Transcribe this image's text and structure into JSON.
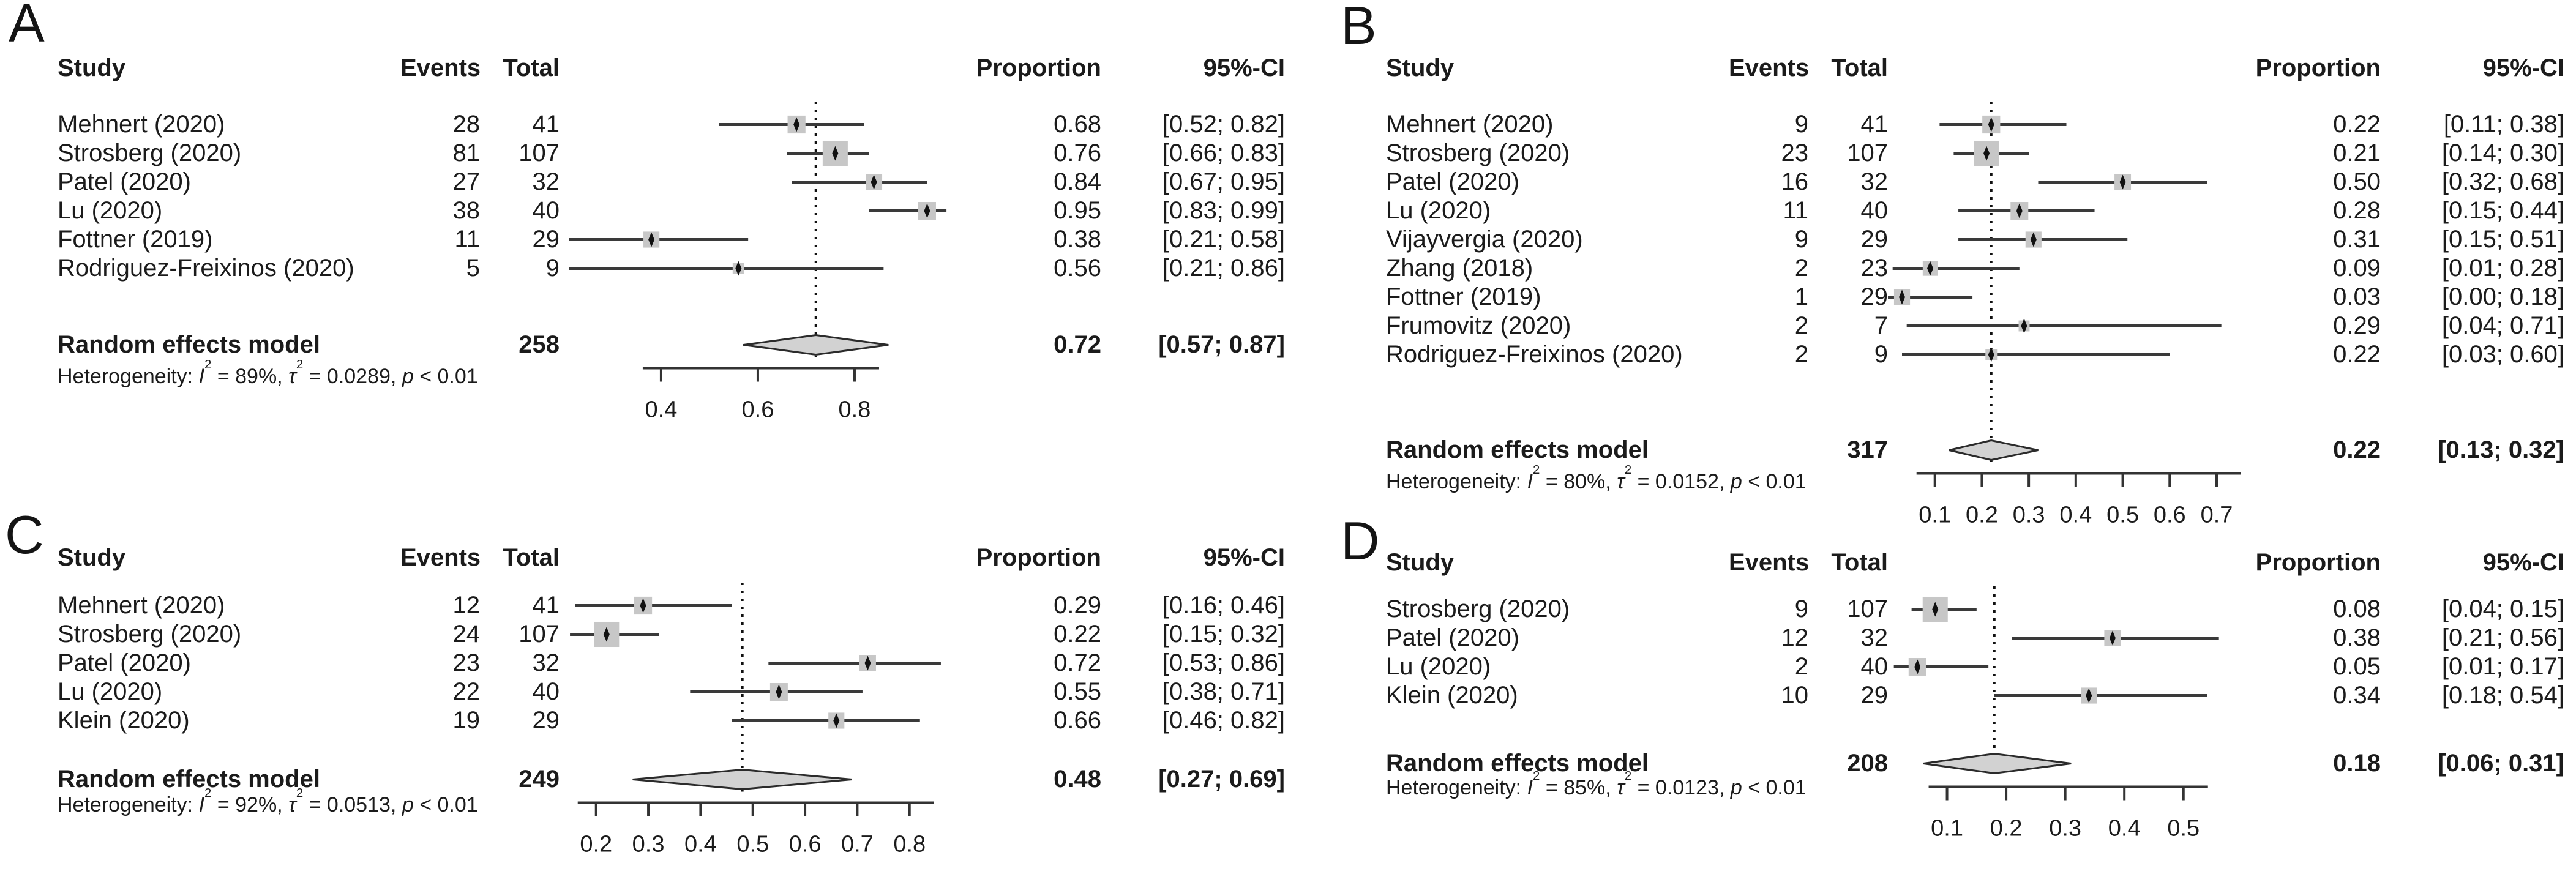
{
  "labels": {
    "study": "Study",
    "events": "Events",
    "total": "Total",
    "proportion": "Proportion",
    "ci": "95%-CI",
    "random_effects": "Random effects model",
    "heterogeneity": "Heterogeneity: ",
    "i": "I",
    "tau": "τ",
    "p": "p",
    "sup2": "2",
    "eq": " = ",
    "sep": ", "
  },
  "chart_data": [
    {
      "type": "forest",
      "panel": "A",
      "studies": [
        {
          "study": "Mehnert (2020)",
          "events": 28,
          "total": 41,
          "proportion": "0.68",
          "ci": "[0.52; 0.82]",
          "prop": 0.68,
          "lo": 0.52,
          "hi": 0.82
        },
        {
          "study": "Strosberg (2020)",
          "events": 81,
          "total": 107,
          "proportion": "0.76",
          "ci": "[0.66; 0.83]",
          "prop": 0.76,
          "lo": 0.66,
          "hi": 0.83
        },
        {
          "study": "Patel (2020)",
          "events": 27,
          "total": 32,
          "proportion": "0.84",
          "ci": "[0.67; 0.95]",
          "prop": 0.84,
          "lo": 0.67,
          "hi": 0.95
        },
        {
          "study": "Lu (2020)",
          "events": 38,
          "total": 40,
          "proportion": "0.95",
          "ci": "[0.83; 0.99]",
          "prop": 0.95,
          "lo": 0.83,
          "hi": 0.99
        },
        {
          "study": "Fottner (2019)",
          "events": 11,
          "total": 29,
          "proportion": "0.38",
          "ci": "[0.21; 0.58]",
          "prop": 0.38,
          "lo": 0.21,
          "hi": 0.58
        },
        {
          "study": "Rodriguez-Freixinos (2020)",
          "events": 5,
          "total": 9,
          "proportion": "0.56",
          "ci": "[0.21; 0.86]",
          "prop": 0.56,
          "lo": 0.21,
          "hi": 0.86
        }
      ],
      "summary": {
        "total": 258,
        "proportion": "0.72",
        "ci": "[0.57; 0.87]",
        "prop": 0.72,
        "lo": 0.57,
        "hi": 0.87
      },
      "heterogeneity": {
        "i2": "89%",
        "tau2": "0.0289",
        "p": " < 0.01"
      },
      "axis": {
        "min": 0.19,
        "max": 1.0,
        "ticks": [
          0.4,
          0.6,
          0.8
        ]
      }
    },
    {
      "type": "forest",
      "panel": "B",
      "studies": [
        {
          "study": "Mehnert (2020)",
          "events": 9,
          "total": 41,
          "proportion": "0.22",
          "ci": "[0.11; 0.38]",
          "prop": 0.22,
          "lo": 0.11,
          "hi": 0.38
        },
        {
          "study": "Strosberg (2020)",
          "events": 23,
          "total": 107,
          "proportion": "0.21",
          "ci": "[0.14; 0.30]",
          "prop": 0.21,
          "lo": 0.14,
          "hi": 0.3
        },
        {
          "study": "Patel (2020)",
          "events": 16,
          "total": 32,
          "proportion": "0.50",
          "ci": "[0.32; 0.68]",
          "prop": 0.5,
          "lo": 0.32,
          "hi": 0.68
        },
        {
          "study": "Lu (2020)",
          "events": 11,
          "total": 40,
          "proportion": "0.28",
          "ci": "[0.15; 0.44]",
          "prop": 0.28,
          "lo": 0.15,
          "hi": 0.44
        },
        {
          "study": "Vijayvergia (2020)",
          "events": 9,
          "total": 29,
          "proportion": "0.31",
          "ci": "[0.15; 0.51]",
          "prop": 0.31,
          "lo": 0.15,
          "hi": 0.51
        },
        {
          "study": "Zhang (2018)",
          "events": 2,
          "total": 23,
          "proportion": "0.09",
          "ci": "[0.01; 0.28]",
          "prop": 0.09,
          "lo": 0.01,
          "hi": 0.28
        },
        {
          "study": "Fottner (2019)",
          "events": 1,
          "total": 29,
          "proportion": "0.03",
          "ci": "[0.00; 0.18]",
          "prop": 0.03,
          "lo": 0.0,
          "hi": 0.18
        },
        {
          "study": "Frumovitz (2020)",
          "events": 2,
          "total": 7,
          "proportion": "0.29",
          "ci": "[0.04; 0.71]",
          "prop": 0.29,
          "lo": 0.04,
          "hi": 0.71
        },
        {
          "study": "Rodriguez-Freixinos (2020)",
          "events": 2,
          "total": 9,
          "proportion": "0.22",
          "ci": "[0.03; 0.60]",
          "prop": 0.22,
          "lo": 0.03,
          "hi": 0.6
        }
      ],
      "summary": {
        "total": 317,
        "proportion": "0.22",
        "ci": "[0.13; 0.32]",
        "prop": 0.22,
        "lo": 0.13,
        "hi": 0.32
      },
      "heterogeneity": {
        "i2": "80%",
        "tau2": "0.0152",
        "p": " < 0.01"
      },
      "axis": {
        "min": 0.0,
        "max": 0.73,
        "ticks": [
          0.1,
          0.2,
          0.3,
          0.4,
          0.5,
          0.6,
          0.7
        ]
      }
    },
    {
      "type": "forest",
      "panel": "C",
      "studies": [
        {
          "study": "Mehnert (2020)",
          "events": 12,
          "total": 41,
          "proportion": "0.29",
          "ci": "[0.16; 0.46]",
          "prop": 0.29,
          "lo": 0.16,
          "hi": 0.46
        },
        {
          "study": "Strosberg (2020)",
          "events": 24,
          "total": 107,
          "proportion": "0.22",
          "ci": "[0.15; 0.32]",
          "prop": 0.22,
          "lo": 0.15,
          "hi": 0.32
        },
        {
          "study": "Patel (2020)",
          "events": 23,
          "total": 32,
          "proportion": "0.72",
          "ci": "[0.53; 0.86]",
          "prop": 0.72,
          "lo": 0.53,
          "hi": 0.86
        },
        {
          "study": "Lu (2020)",
          "events": 22,
          "total": 40,
          "proportion": "0.55",
          "ci": "[0.38; 0.71]",
          "prop": 0.55,
          "lo": 0.38,
          "hi": 0.71
        },
        {
          "study": "Klein (2020)",
          "events": 19,
          "total": 29,
          "proportion": "0.66",
          "ci": "[0.46; 0.82]",
          "prop": 0.66,
          "lo": 0.46,
          "hi": 0.82
        }
      ],
      "summary": {
        "total": 249,
        "proportion": "0.48",
        "ci": "[0.27; 0.69]",
        "prop": 0.48,
        "lo": 0.27,
        "hi": 0.69
      },
      "heterogeneity": {
        "i2": "92%",
        "tau2": "0.0513",
        "p": " < 0.01"
      },
      "axis": {
        "min": 0.13,
        "max": 0.88,
        "ticks": [
          0.2,
          0.3,
          0.4,
          0.5,
          0.6,
          0.7,
          0.8
        ]
      }
    },
    {
      "type": "forest",
      "panel": "D",
      "studies": [
        {
          "study": "Strosberg (2020)",
          "events": 9,
          "total": 107,
          "proportion": "0.08",
          "ci": "[0.04; 0.15]",
          "prop": 0.08,
          "lo": 0.04,
          "hi": 0.15
        },
        {
          "study": "Patel (2020)",
          "events": 12,
          "total": 32,
          "proportion": "0.38",
          "ci": "[0.21; 0.56]",
          "prop": 0.38,
          "lo": 0.21,
          "hi": 0.56
        },
        {
          "study": "Lu (2020)",
          "events": 2,
          "total": 40,
          "proportion": "0.05",
          "ci": "[0.01; 0.17]",
          "prop": 0.05,
          "lo": 0.01,
          "hi": 0.17
        },
        {
          "study": "Klein (2020)",
          "events": 10,
          "total": 29,
          "proportion": "0.34",
          "ci": "[0.18; 0.54]",
          "prop": 0.34,
          "lo": 0.18,
          "hi": 0.54
        }
      ],
      "summary": {
        "total": 208,
        "proportion": "0.18",
        "ci": "[0.06; 0.31]",
        "prop": 0.18,
        "lo": 0.06,
        "hi": 0.31
      },
      "heterogeneity": {
        "i2": "85%",
        "tau2": "0.0123",
        "p": " < 0.01"
      },
      "axis": {
        "min": 0.0,
        "max": 0.58,
        "ticks": [
          0.1,
          0.2,
          0.3,
          0.4,
          0.5
        ]
      }
    }
  ],
  "style": {
    "square_color": "#c7c7c7",
    "whisker_color": "#3a3a3a",
    "marker_color": "#111111",
    "diamond_fill": "#d2d2d2",
    "diamond_stroke": "#2b2b2b",
    "axis_color": "#333333",
    "text_color": "#1b1b1b"
  }
}
